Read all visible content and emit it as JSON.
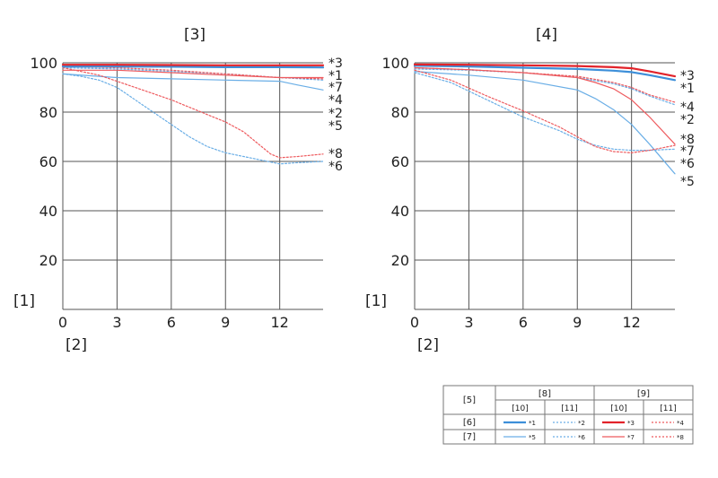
{
  "colors": {
    "blue_thick": "#3d8fd9",
    "blue_thin": "#6aaee6",
    "red_thick": "#e2232a",
    "red_thin": "#ee5a5e",
    "grid": "#555555",
    "frame": "#555555"
  },
  "chart_data": [
    {
      "type": "line",
      "title": "[3]",
      "ylabel": "[1]",
      "xlabel": "[2]",
      "xlim": [
        0,
        14.4
      ],
      "ylim": [
        0,
        100
      ],
      "x_ticks": [
        0,
        3,
        6,
        9,
        12
      ],
      "y_ticks": [
        20,
        40,
        60,
        80,
        100
      ],
      "series": [
        {
          "name": "*1",
          "style": "blue-thick-solid",
          "x": [
            0,
            3,
            6,
            9,
            12,
            14.4
          ],
          "y": [
            98.5,
            98.5,
            98.4,
            98.2,
            98.2,
            98.1
          ]
        },
        {
          "name": "*2",
          "style": "blue-thin-dotted",
          "x": [
            0,
            3,
            6,
            9,
            12,
            14.4
          ],
          "y": [
            98,
            97.5,
            96.5,
            95.5,
            94,
            93
          ]
        },
        {
          "name": "*3",
          "style": "red-thick-solid",
          "x": [
            0,
            3,
            6,
            9,
            12,
            14.4
          ],
          "y": [
            99.2,
            99.2,
            99.1,
            99,
            99,
            99
          ]
        },
        {
          "name": "*4",
          "style": "red-thin-dotted",
          "x": [
            0,
            3,
            6,
            9,
            12,
            14.4
          ],
          "y": [
            98.5,
            98,
            97,
            95.5,
            94,
            93.5
          ]
        },
        {
          "name": "*5",
          "style": "blue-thin-solid",
          "x": [
            0,
            3,
            6,
            9,
            12,
            13,
            14.4
          ],
          "y": [
            95.5,
            94,
            93.5,
            93,
            92.5,
            91,
            89
          ]
        },
        {
          "name": "*6",
          "style": "blue-thin-dotted",
          "x": [
            0,
            1,
            2,
            3,
            4,
            5,
            6,
            7,
            8,
            9,
            10,
            11,
            12,
            13,
            14.4
          ],
          "y": [
            95.5,
            94.5,
            93,
            90,
            85,
            80,
            75,
            70,
            66,
            63.5,
            62,
            60.5,
            59,
            59.5,
            60
          ]
        },
        {
          "name": "*7",
          "style": "red-thin-solid",
          "x": [
            0,
            3,
            6,
            9,
            12,
            14.4
          ],
          "y": [
            97,
            97,
            96,
            95,
            94,
            94
          ]
        },
        {
          "name": "*8",
          "style": "red-thin-dotted",
          "x": [
            0,
            2,
            4,
            6,
            8,
            9,
            10,
            11,
            11.5,
            12,
            13,
            14.4
          ],
          "y": [
            98,
            95,
            90,
            85,
            79,
            76,
            72,
            66,
            63,
            61.5,
            62,
            63
          ]
        }
      ],
      "end_labels": [
        "*3",
        "*1",
        "*7",
        "*4",
        "*2",
        "*5",
        "*8",
        "*6"
      ]
    },
    {
      "type": "line",
      "title": "[4]",
      "ylabel": "[1]",
      "xlabel": "[2]",
      "xlim": [
        0,
        14.4
      ],
      "ylim": [
        0,
        100
      ],
      "x_ticks": [
        0,
        3,
        6,
        9,
        12
      ],
      "y_ticks": [
        20,
        40,
        60,
        80,
        100
      ],
      "series": [
        {
          "name": "*1",
          "style": "blue-thick-solid",
          "x": [
            0,
            3,
            6,
            9,
            11,
            12,
            13,
            14.4
          ],
          "y": [
            98.8,
            98.5,
            98,
            97.5,
            96.8,
            96.2,
            95,
            93
          ]
        },
        {
          "name": "*2",
          "style": "blue-thin-dotted",
          "x": [
            0,
            3,
            6,
            9,
            11,
            12,
            13,
            14.4
          ],
          "y": [
            97.5,
            97,
            96,
            94,
            91.5,
            89.5,
            86.5,
            83
          ]
        },
        {
          "name": "*3",
          "style": "red-thick-solid",
          "x": [
            0,
            3,
            6,
            9,
            11,
            12,
            13,
            14.4
          ],
          "y": [
            99.3,
            99.2,
            99,
            98.7,
            98.2,
            97.8,
            96.5,
            94.5
          ]
        },
        {
          "name": "*4",
          "style": "red-thin-dotted",
          "x": [
            0,
            3,
            6,
            9,
            11,
            12,
            13,
            14.4
          ],
          "y": [
            98,
            97.2,
            96,
            94.5,
            92,
            90,
            87,
            84
          ]
        },
        {
          "name": "*5",
          "style": "blue-thin-solid",
          "x": [
            0,
            3,
            6,
            9,
            10,
            11,
            12,
            13,
            14.4
          ],
          "y": [
            96.5,
            95,
            93,
            89,
            85.5,
            81,
            75,
            67,
            55
          ]
        },
        {
          "name": "*6",
          "style": "blue-thin-dotted",
          "x": [
            0,
            2,
            4,
            6,
            8,
            9,
            10,
            11,
            12,
            13,
            14.4
          ],
          "y": [
            96,
            92,
            85,
            78,
            72.5,
            69,
            66.5,
            65,
            64.5,
            64.5,
            65
          ]
        },
        {
          "name": "*7",
          "style": "red-thin-solid",
          "x": [
            0,
            3,
            6,
            9,
            10,
            11,
            12,
            13,
            14.4
          ],
          "y": [
            98,
            97.2,
            96,
            94,
            92,
            89.5,
            85,
            78,
            67
          ]
        },
        {
          "name": "*8",
          "style": "red-thin-dotted",
          "x": [
            0,
            2,
            4,
            6,
            8,
            9,
            10,
            11,
            12,
            13,
            14.4
          ],
          "y": [
            97,
            93,
            86.5,
            80.5,
            74,
            70,
            66,
            64,
            63.5,
            64.5,
            66.5
          ]
        }
      ],
      "end_labels": [
        "*3",
        "*1",
        "*4",
        "*2",
        "*8",
        "*7",
        "*6",
        "*5"
      ]
    }
  ],
  "legend_table": {
    "corner": "[5]",
    "group_headers": [
      "[8]",
      "[9]"
    ],
    "sub_headers": [
      "[10]",
      "[11]",
      "[10]",
      "[11]"
    ],
    "rows": [
      {
        "label": "[6]",
        "entries": [
          {
            "name": "*1",
            "style": "blue-thick-solid"
          },
          {
            "name": "*2",
            "style": "blue-thin-dotted"
          },
          {
            "name": "*3",
            "style": "red-thick-solid"
          },
          {
            "name": "*4",
            "style": "red-thin-dotted"
          }
        ]
      },
      {
        "label": "[7]",
        "entries": [
          {
            "name": "*5",
            "style": "blue-thin-solid"
          },
          {
            "name": "*6",
            "style": "blue-thin-dotted"
          },
          {
            "name": "*7",
            "style": "red-thin-solid"
          },
          {
            "name": "*8",
            "style": "red-thin-dotted"
          }
        ]
      }
    ]
  }
}
